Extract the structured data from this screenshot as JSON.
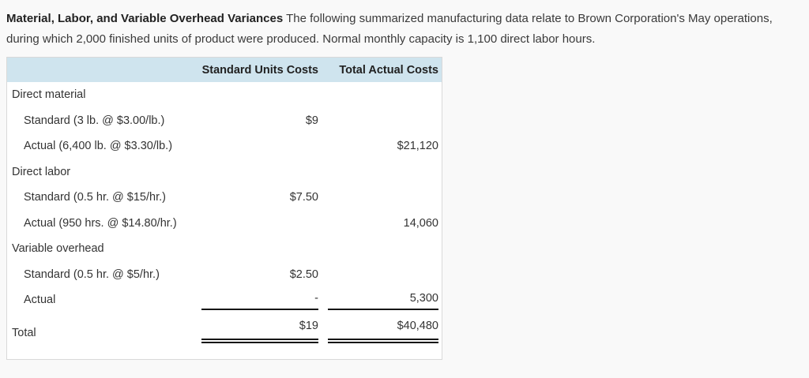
{
  "colors": {
    "page-bg": "#f9f9f9",
    "table-header-bg": "#cfe4ee",
    "rule": "#161616",
    "table-border": "#d9d9d9"
  },
  "intro": {
    "title": "Material, Labor, and Variable Overhead Variances",
    "body": " The following summarized manufacturing data relate to Brown Corporation's May operations, during which 2,000 finished units of product were produced. Normal monthly capacity is 1,100 direct labor hours."
  },
  "table": {
    "columns": {
      "standard": "Standard Units Costs",
      "actual": "Total Actual Costs"
    },
    "rows": [
      {
        "label": "Direct material",
        "std": "",
        "act": ""
      },
      {
        "label": "Standard (3 lb. @ $3.00/lb.)",
        "std": "$9",
        "act": ""
      },
      {
        "label": "Actual (6,400 lb. @ $3.30/lb.)",
        "std": "",
        "act": "$21,120"
      },
      {
        "label": "Direct labor",
        "std": "",
        "act": ""
      },
      {
        "label": "Standard (0.5 hr. @ $15/hr.)",
        "std": "$7.50",
        "act": ""
      },
      {
        "label": "Actual (950 hrs. @ $14.80/hr.)",
        "std": "",
        "act": "14,060"
      },
      {
        "label": "Variable overhead",
        "std": "",
        "act": ""
      },
      {
        "label": "Standard (0.5 hr. @ $5/hr.)",
        "std": "$2.50",
        "act": ""
      },
      {
        "label": "Actual",
        "std": "-",
        "act": "5,300"
      },
      {
        "label": "Total",
        "std": "$19",
        "act": "$40,480"
      }
    ]
  }
}
